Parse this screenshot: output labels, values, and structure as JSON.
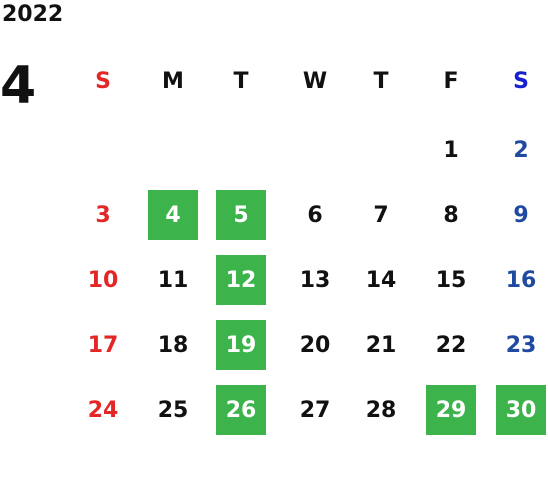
{
  "calendar": {
    "year": "2022",
    "month": "4",
    "weekdays": [
      "S",
      "M",
      "T",
      "W",
      "T",
      "F",
      "S"
    ],
    "colors": {
      "sunday": "#e32626",
      "saturday_header": "#1520d0",
      "saturday": "#1f4aa0",
      "highlight": "#3cb44b"
    },
    "days": [
      {
        "label": "1",
        "highlighted": false
      },
      {
        "label": "2",
        "highlighted": false
      },
      {
        "label": "3",
        "highlighted": false
      },
      {
        "label": "4",
        "highlighted": true
      },
      {
        "label": "5",
        "highlighted": true
      },
      {
        "label": "6",
        "highlighted": false
      },
      {
        "label": "7",
        "highlighted": false
      },
      {
        "label": "8",
        "highlighted": false
      },
      {
        "label": "9",
        "highlighted": false
      },
      {
        "label": "10",
        "highlighted": false
      },
      {
        "label": "11",
        "highlighted": false
      },
      {
        "label": "12",
        "highlighted": true
      },
      {
        "label": "13",
        "highlighted": false
      },
      {
        "label": "14",
        "highlighted": false
      },
      {
        "label": "15",
        "highlighted": false
      },
      {
        "label": "16",
        "highlighted": false
      },
      {
        "label": "17",
        "highlighted": false
      },
      {
        "label": "18",
        "highlighted": false
      },
      {
        "label": "19",
        "highlighted": true
      },
      {
        "label": "20",
        "highlighted": false
      },
      {
        "label": "21",
        "highlighted": false
      },
      {
        "label": "22",
        "highlighted": false
      },
      {
        "label": "23",
        "highlighted": false
      },
      {
        "label": "24",
        "highlighted": false
      },
      {
        "label": "25",
        "highlighted": false
      },
      {
        "label": "26",
        "highlighted": true
      },
      {
        "label": "27",
        "highlighted": false
      },
      {
        "label": "28",
        "highlighted": false
      },
      {
        "label": "29",
        "highlighted": true
      },
      {
        "label": "30",
        "highlighted": true
      }
    ]
  }
}
